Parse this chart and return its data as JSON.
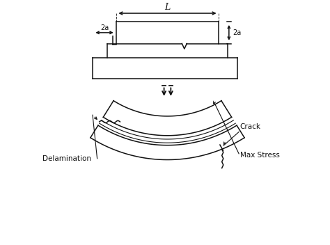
{
  "bg_color": "#ffffff",
  "line_color": "#111111",
  "text_color": "#111111",
  "figsize": [
    4.74,
    3.52
  ],
  "dpi": 100,
  "label_L": "L",
  "label_2a_top": "2a",
  "label_2a_left": "2a",
  "label_crack": "Crack",
  "label_delamination": "Delamination",
  "label_max_stress": "Max Stress"
}
